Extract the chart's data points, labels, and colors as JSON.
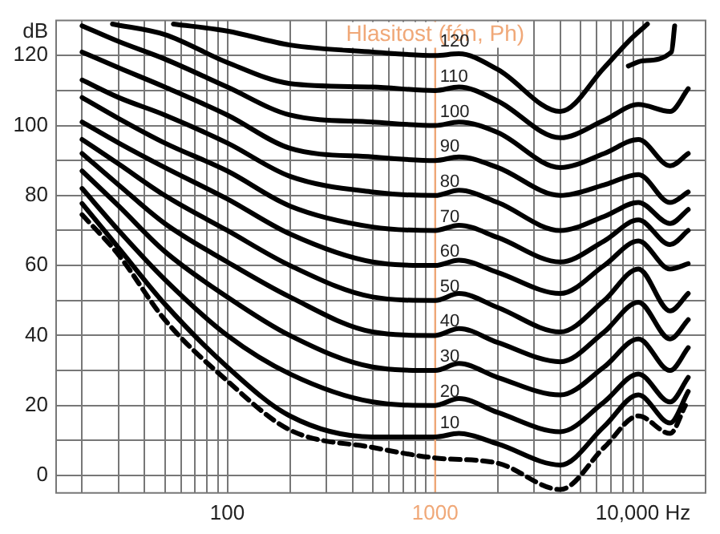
{
  "chart_data": {
    "type": "line",
    "ylabel": "dB",
    "log": "x",
    "grid": true,
    "legend": false,
    "marker": "none",
    "line_style": "solid",
    "x": [
      20,
      30,
      50,
      100,
      200,
      500,
      1000,
      1300,
      2000,
      4000,
      6500,
      9500,
      13500,
      16500
    ],
    "xlim": [
      15,
      20000
    ],
    "xticks": [
      {
        "value": 20,
        "label": null
      },
      {
        "value": 30,
        "label": null
      },
      {
        "value": 40,
        "label": null
      },
      {
        "value": 50,
        "label": null
      },
      {
        "value": 60,
        "label": null
      },
      {
        "value": 70,
        "label": null
      },
      {
        "value": 80,
        "label": null
      },
      {
        "value": 90,
        "label": null
      },
      100,
      {
        "value": 200,
        "label": null
      },
      {
        "value": 300,
        "label": null
      },
      {
        "value": 400,
        "label": null
      },
      {
        "value": 500,
        "label": null
      },
      {
        "value": 600,
        "label": null
      },
      {
        "value": 700,
        "label": null
      },
      {
        "value": 800,
        "label": null
      },
      {
        "value": 900,
        "label": null
      },
      1000,
      {
        "value": 2000,
        "label": null
      },
      {
        "value": 3000,
        "label": null
      },
      {
        "value": 4000,
        "label": null
      },
      {
        "value": 5000,
        "label": null
      },
      {
        "value": 6000,
        "label": null
      },
      {
        "value": 7000,
        "label": null
      },
      {
        "value": 8000,
        "label": null
      },
      {
        "value": 9000,
        "label": null
      },
      {
        "value": 10000,
        "label": "10,000 Hz"
      },
      {
        "value": 20000,
        "label": null
      }
    ],
    "ylim": [
      -5,
      130
    ],
    "yticks": [
      0,
      {
        "value": 10,
        "label": null
      },
      20,
      {
        "value": 30,
        "label": null
      },
      40,
      {
        "value": 50,
        "label": null
      },
      60,
      {
        "value": 70,
        "label": null
      },
      80,
      {
        "value": 90,
        "label": null
      },
      100,
      {
        "value": 110,
        "label": null
      },
      120
    ],
    "ref_lines": [
      {
        "axis": "x",
        "value": 1000,
        "label": "Hlasitost (fón, Ph)",
        "color": "#f0a878"
      }
    ],
    "series": [
      {
        "color": "#000000",
        "line_style": "dashed",
        "x": [
          20,
          30,
          50,
          100,
          200,
          500,
          1000,
          2000,
          4000,
          6500,
          9500,
          13500,
          16000
        ],
        "values": [
          74.5,
          63,
          44.5,
          27,
          13,
          8,
          5,
          3.5,
          -4,
          8,
          17,
          12,
          20
        ]
      },
      {
        "name": "10",
        "color": "#000000",
        "values": [
          77.7,
          65,
          49,
          31,
          17,
          11,
          11,
          12,
          9,
          3,
          14,
          23,
          15,
          24
        ]
      },
      {
        "name": "20",
        "color": "#000000",
        "values": [
          82,
          70,
          56,
          40,
          29,
          21,
          20,
          22,
          18,
          12.5,
          21,
          29,
          21,
          28
        ]
      },
      {
        "name": "30",
        "color": "#000000",
        "values": [
          87,
          77,
          64,
          51,
          40,
          31,
          30,
          32,
          28,
          23,
          31,
          39,
          30,
          36.5
        ]
      },
      {
        "name": "40",
        "color": "#000000",
        "values": [
          92,
          83,
          72,
          61,
          51,
          41,
          40,
          42,
          38,
          32.5,
          41,
          49.5,
          39,
          44.5
        ]
      },
      {
        "name": "50",
        "color": "#000000",
        "values": [
          96,
          89,
          80,
          70,
          60,
          51,
          50,
          52,
          48,
          41,
          50,
          59,
          47,
          52
        ]
      },
      {
        "name": "60",
        "color": "#000000",
        "values": [
          101,
          95,
          88,
          79,
          69,
          61,
          60,
          61.5,
          58,
          52,
          60,
          67,
          59,
          60.5
        ]
      },
      {
        "name": "70",
        "color": "#000000",
        "values": [
          108,
          102,
          95,
          87,
          77,
          71,
          70,
          71.5,
          68,
          61,
          67,
          73,
          66,
          70
        ]
      },
      {
        "name": "80",
        "color": "#000000",
        "values": [
          113,
          108,
          103,
          95,
          85.5,
          81,
          80,
          81.5,
          78,
          70,
          74,
          78,
          72,
          76
        ]
      },
      {
        "name": "90",
        "color": "#000000",
        "values": [
          121,
          116.5,
          111,
          103,
          93.5,
          91,
          90,
          91,
          88,
          80,
          83,
          86,
          78,
          81
        ]
      },
      {
        "name": "100",
        "color": "#000000",
        "values": [
          128.5,
          124,
          119,
          111,
          103,
          101,
          100,
          101,
          98,
          88,
          92,
          96,
          88.5,
          92
        ]
      },
      {
        "name": "110",
        "color": "#000000",
        "x": [
          28,
          50,
          100,
          200,
          500,
          1000,
          1300,
          2000,
          4000,
          6500,
          9500,
          13500,
          16500
        ],
        "values": [
          129,
          126,
          118,
          112,
          111,
          110,
          111,
          107,
          96.5,
          101.5,
          106,
          104,
          110.5
        ]
      },
      {
        "name": "120",
        "color": "#000000",
        "x": [
          55,
          100,
          200,
          500,
          1000,
          1300,
          2000,
          4000,
          6500,
          8500,
          10500
        ],
        "values": [
          129,
          127,
          123,
          121,
          120,
          120.5,
          116,
          104,
          116.5,
          124,
          129
        ]
      },
      {
        "color": "#000000",
        "x": [
          8500,
          10000,
          13700,
          14200
        ],
        "values": [
          117,
          118.5,
          121,
          128.5
        ]
      }
    ]
  }
}
